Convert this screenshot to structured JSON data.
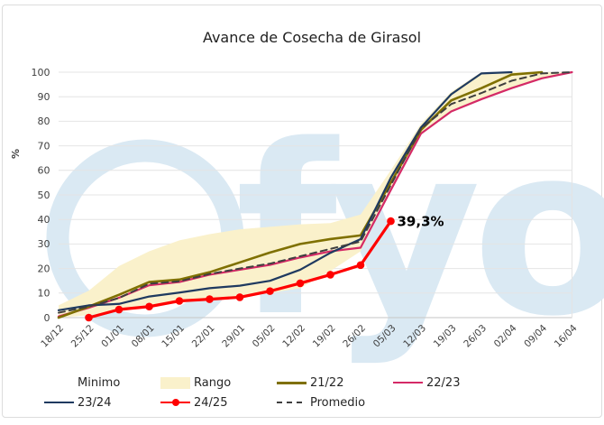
{
  "watermark": {
    "text": "fyo",
    "color": "#dae9f3"
  },
  "chart_data": {
    "type": "line",
    "title": "Avance de Cosecha de Girasol",
    "ylabel": "%",
    "x_labels": [
      "18/12",
      "25/12",
      "01/01",
      "08/01",
      "15/01",
      "22/01",
      "29/01",
      "05/02",
      "12/02",
      "19/02",
      "26/02",
      "05/03",
      "12/03",
      "19/03",
      "26/03",
      "02/04",
      "09/04",
      "16/04"
    ],
    "y_ticks": [
      0,
      10,
      20,
      30,
      40,
      50,
      60,
      70,
      80,
      90,
      100
    ],
    "ylim": [
      0,
      100
    ],
    "grid": "horizontal",
    "legend_position": "bottom",
    "band": {
      "name": "Rango",
      "color": "#faf1cb",
      "min": [
        0,
        1,
        2.5,
        4.5,
        6,
        7.5,
        8.5,
        10,
        12,
        19,
        27,
        52,
        74.5,
        84,
        89,
        93.5,
        97.5,
        100
      ],
      "max": [
        5,
        11,
        21,
        27,
        31.5,
        34,
        36,
        37,
        38,
        38.5,
        42,
        60,
        79,
        92,
        100,
        100,
        100,
        100
      ]
    },
    "series": [
      {
        "name": "22/23",
        "color": "#d42a66",
        "width": 2.2,
        "values": [
          0.5,
          4,
          8.1,
          13.2,
          14.5,
          17.5,
          19.5,
          21.5,
          24.5,
          27,
          28.5,
          52,
          75,
          84,
          89,
          93.5,
          97.5,
          100
        ]
      },
      {
        "name": "21/22",
        "color": "#7f7000",
        "width": 2.6,
        "values": [
          0,
          4.5,
          9.3,
          14.5,
          15.5,
          18.5,
          22.5,
          26.5,
          30,
          32,
          33.5,
          55,
          76.5,
          88.5,
          93.5,
          99,
          100,
          null
        ]
      },
      {
        "name": "23/24",
        "color": "#1f3a60",
        "width": 2.2,
        "values": [
          3,
          5,
          5.6,
          8.6,
          10.2,
          12,
          13,
          15,
          19.5,
          26.4,
          32,
          57,
          77.5,
          91,
          99.5,
          100,
          null,
          null
        ]
      },
      {
        "name": "Promedio",
        "color": "#3f3f3f",
        "width": 2,
        "dash": "7 5",
        "values": [
          2,
          4.5,
          8,
          13.8,
          14.8,
          17.8,
          20,
          22,
          25,
          28,
          31,
          54,
          77,
          87,
          91.5,
          96.5,
          99.5,
          100
        ]
      },
      {
        "name": "24/25",
        "color": "#ff0000",
        "width": 3.2,
        "markers": true,
        "values": [
          null,
          0,
          3.3,
          4.5,
          6.8,
          7.5,
          8.3,
          10.8,
          14,
          17.5,
          21.4,
          39.3,
          null,
          null,
          null,
          null,
          null,
          null
        ]
      }
    ],
    "annotation": {
      "text": "39,3%",
      "x_index": 11,
      "value": 39.3
    }
  },
  "legend": {
    "rows": [
      [
        {
          "label": "Minimo",
          "type": "none",
          "color": ""
        },
        {
          "label": "Rango",
          "type": "box",
          "color": "#faf1cb"
        },
        {
          "label": "21/22",
          "type": "line",
          "color": "#7f7000"
        },
        {
          "label": "22/23",
          "type": "line",
          "color": "#d42a66"
        }
      ],
      [
        {
          "label": "23/24",
          "type": "line",
          "color": "#1f3a60"
        },
        {
          "label": "24/25",
          "type": "line-marker",
          "color": "#ff0000"
        },
        {
          "label": "Promedio",
          "type": "dash",
          "color": "#3f3f3f"
        }
      ]
    ]
  }
}
